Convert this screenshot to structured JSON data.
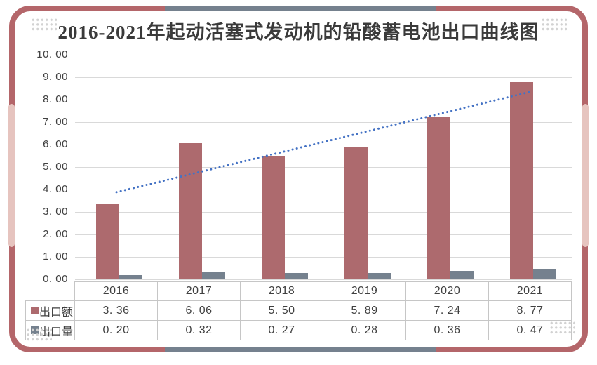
{
  "title": "2016-2021年起动活塞式发动机的铅酸蓄电池出口曲线图",
  "frame": {
    "border_color": "#b4666a",
    "accent_pink": "#e6c4bf",
    "accent_gray": "#75818e"
  },
  "chart_data": {
    "type": "bar",
    "title": "2016-2021年起动活塞式发动机的铅酸蓄电池出口曲线图",
    "categories": [
      "2016",
      "2017",
      "2018",
      "2019",
      "2020",
      "2021"
    ],
    "series": [
      {
        "name": "出口额",
        "color": "#ad6a6e",
        "values": [
          3.36,
          6.06,
          5.5,
          5.89,
          7.24,
          8.77
        ]
      },
      {
        "name": "出口量",
        "color": "#75818e",
        "values": [
          0.2,
          0.32,
          0.27,
          0.28,
          0.36,
          0.47
        ]
      }
    ],
    "trendline": {
      "for_series": "出口额",
      "style": "dotted",
      "color": "#4472c4",
      "start_value": 3.88,
      "end_value": 8.35
    },
    "ylim": [
      0,
      10
    ],
    "ytick_step": 1,
    "ytick_labels": [
      "10. 00",
      "9. 00",
      "8. 00",
      "7. 00",
      "6. 00",
      "5. 00",
      "4. 00",
      "3. 00",
      "2. 00",
      "1. 00",
      "0. 00"
    ],
    "grid": true,
    "gridline_color": "#d9d9d9",
    "legend_position": "table-rows"
  },
  "table": {
    "columns": [
      "2016",
      "2017",
      "2018",
      "2019",
      "2020",
      "2021"
    ],
    "rows": [
      {
        "label": "出口额",
        "marker_color": "#ad6a6e",
        "cells": [
          "3. 36",
          "6. 06",
          "5. 50",
          "5. 89",
          "7. 24",
          "8. 77"
        ]
      },
      {
        "label": "出口量",
        "marker_color": "#75818e",
        "cells": [
          "0. 20",
          "0. 32",
          "0. 27",
          "0. 28",
          "0. 36",
          "0. 47"
        ]
      }
    ]
  }
}
